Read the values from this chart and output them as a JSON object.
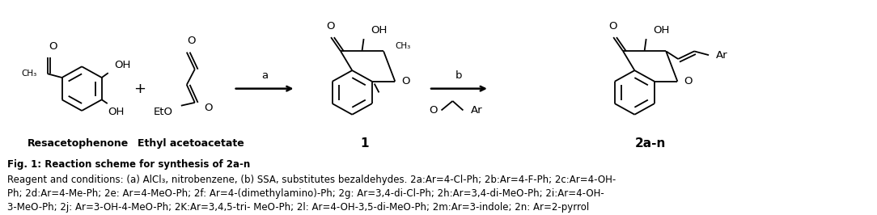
{
  "fig_width": 10.84,
  "fig_height": 2.66,
  "dpi": 100,
  "bg_color": "#ffffff",
  "caption_line1": "Fig. 1: Reaction scheme for synthesis of 2a-n",
  "caption_line2": "Reagent and conditions: (a) AlCl₃, nitrobenzene, (b) SSA, substitutes bezaldehydes. 2a:Ar=4-Cl-Ph; 2b:Ar=4-F-Ph; 2c:Ar=4-OH-",
  "caption_line3": "Ph; 2d:Ar=4-Me-Ph; 2e: Ar=4-MeO-Ph; 2f: Ar=4-(dimethylamino)-Ph; 2g: Ar=3,4-di-Cl-Ph; 2h:Ar=3,4-di-MeO-Ph; 2i:Ar=4-OH-",
  "caption_line4": "3-MeO-Ph; 2j: Ar=3-OH-4-MeO-Ph; 2K:Ar=3,4,5-tri- MeO-Ph; 2l: Ar=4-OH-3,5-di-MeO-Ph; 2m:Ar=3-indole; 2n: Ar=2-pyrrol",
  "caption_fontsize": 8.5,
  "label_fontsize": 10,
  "reaction_label_fontsize": 9
}
